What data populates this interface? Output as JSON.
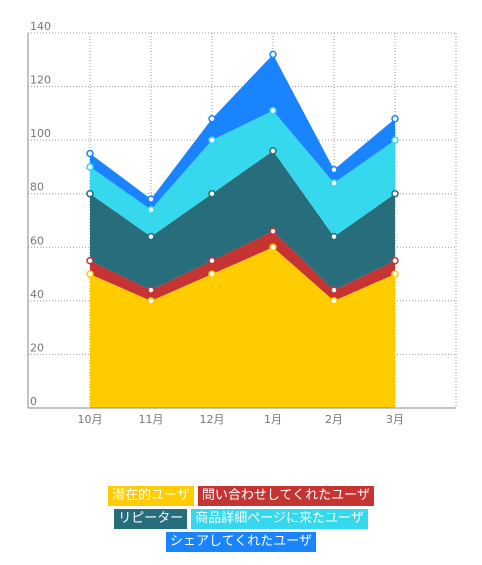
{
  "chart_data": {
    "type": "area",
    "stacked": true,
    "categories": [
      "10月",
      "11月",
      "12月",
      "1月",
      "2月",
      "3月"
    ],
    "ylim": [
      0,
      140
    ],
    "yticks": [
      0,
      20,
      40,
      60,
      80,
      100,
      120,
      140
    ],
    "grid": true,
    "legend_position": "bottom",
    "series": [
      {
        "name": "潜在的ユーザ",
        "color": "#ffcc00",
        "values": [
          50,
          40,
          50,
          60,
          40,
          50
        ]
      },
      {
        "name": "問い合わせしてくれたユーザ",
        "color": "#c53333",
        "values": [
          5,
          4,
          5,
          6,
          4,
          5
        ]
      },
      {
        "name": "リピーター",
        "color": "#276d7b",
        "values": [
          25,
          20,
          25,
          30,
          20,
          25
        ]
      },
      {
        "name": "商品詳細ページに来たユーザ",
        "color": "#36d8ee",
        "values": [
          10,
          10,
          20,
          15,
          20,
          20
        ]
      },
      {
        "name": "シェアしてくれたユーザ",
        "color": "#1a84ff",
        "values": [
          5,
          4,
          8,
          21,
          5,
          8
        ]
      }
    ]
  }
}
